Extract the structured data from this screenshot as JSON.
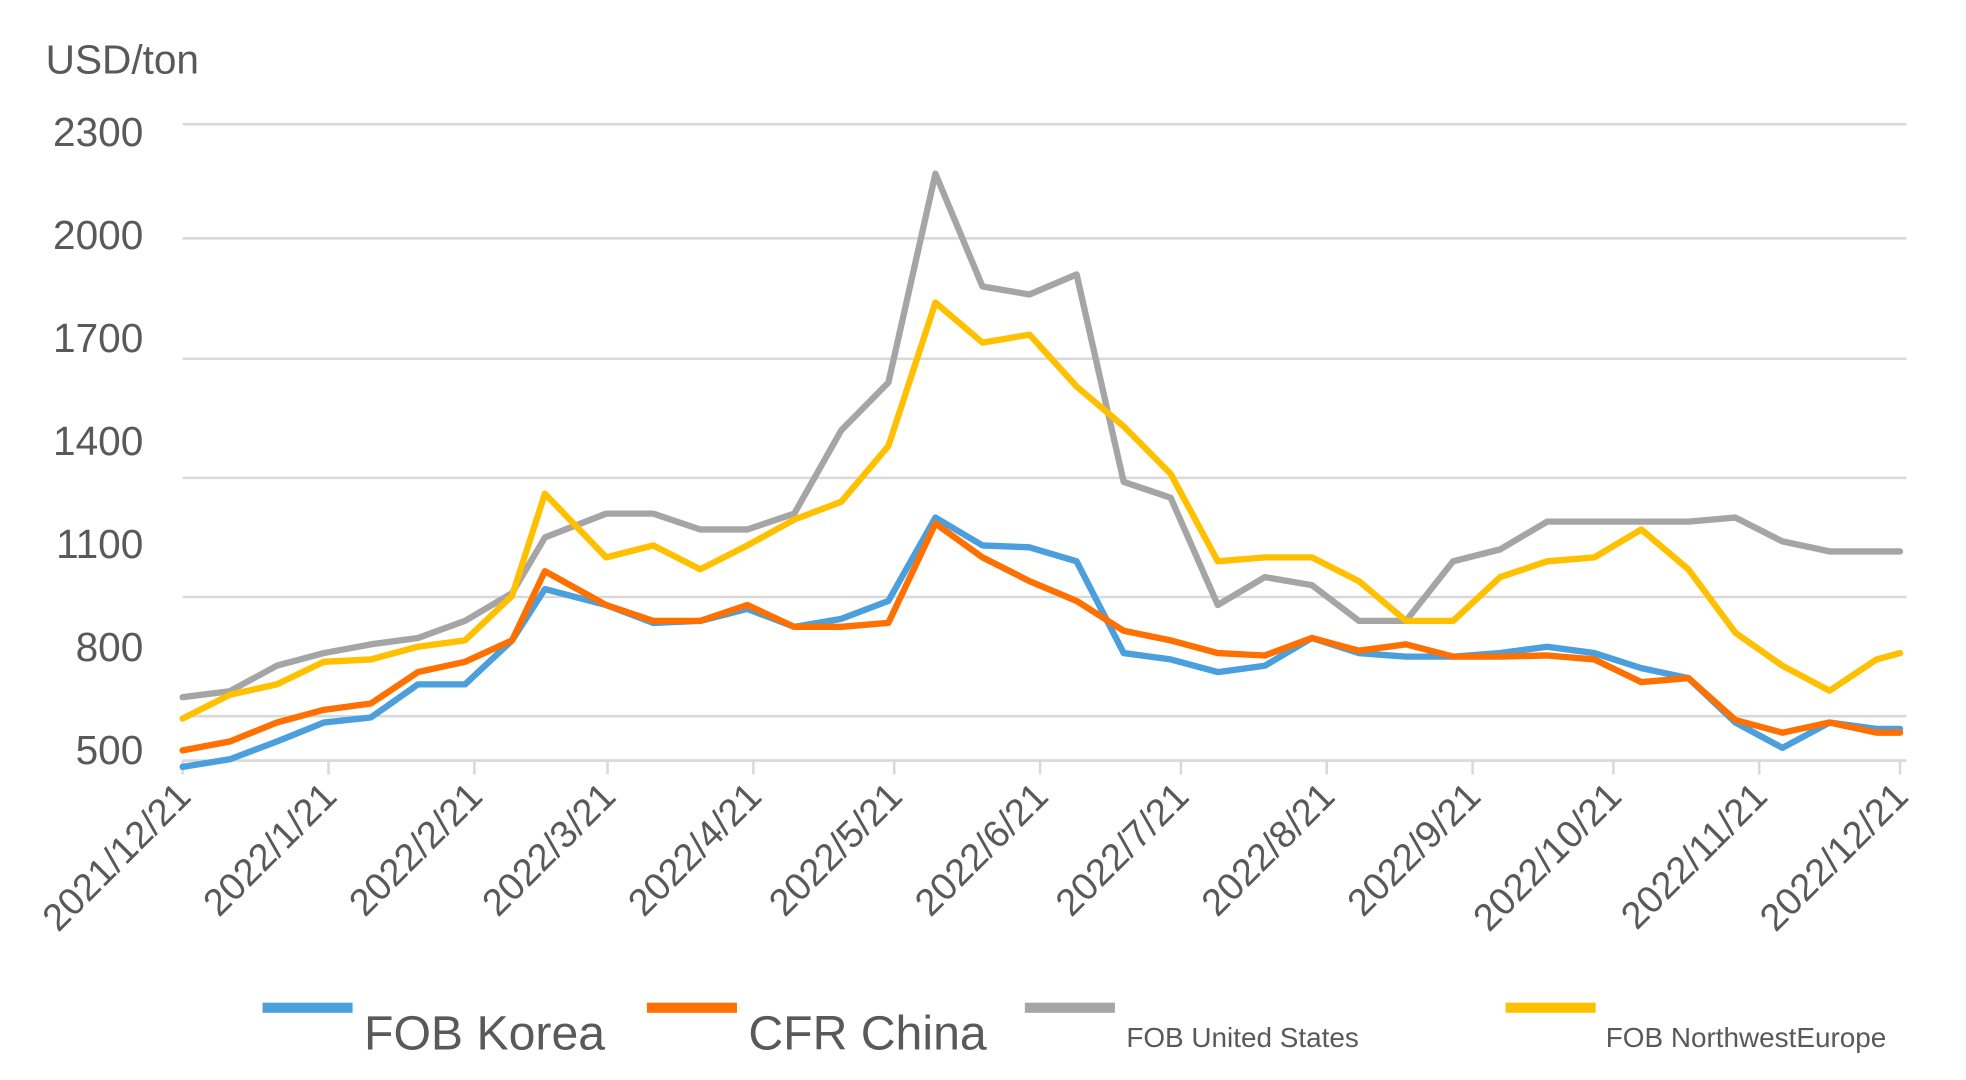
{
  "chart_data": {
    "type": "line",
    "title": "",
    "ylabel": "USD/ton",
    "xlabel": "",
    "y_ticks": [
      2300,
      2000,
      1700,
      1400,
      1100,
      800,
      500
    ],
    "x_ticks": [
      "2021/12/21",
      "2022/1/21",
      "2022/2/21",
      "2022/3/21",
      "2022/4/21",
      "2022/5/21",
      "2022/6/21",
      "2022/7/21",
      "2022/8/21",
      "2022/9/21",
      "2022/10/21",
      "2022/11/21",
      "2022/12/21"
    ],
    "x_range": [
      "2021-12-21",
      "2022-12-21"
    ],
    "grid": "horizontal",
    "legend_position": "bottom",
    "x": [
      "2021-12-21",
      "2021-12-31",
      "2022-01-10",
      "2022-01-20",
      "2022-01-30",
      "2022-02-09",
      "2022-02-19",
      "2022-03-01",
      "2022-03-08",
      "2022-03-21",
      "2022-03-31",
      "2022-04-10",
      "2022-04-20",
      "2022-04-30",
      "2022-05-10",
      "2022-05-20",
      "2022-05-30",
      "2022-06-09",
      "2022-06-19",
      "2022-06-29",
      "2022-07-09",
      "2022-07-19",
      "2022-07-29",
      "2022-08-08",
      "2022-08-18",
      "2022-08-28",
      "2022-09-07",
      "2022-09-17",
      "2022-09-27",
      "2022-10-07",
      "2022-10-17",
      "2022-10-27",
      "2022-11-06",
      "2022-11-16",
      "2022-11-26",
      "2022-12-06",
      "2022-12-16",
      "2022-12-21"
    ],
    "series": [
      {
        "name": "FOB Korea",
        "color": "#4a9fdc",
        "values": [
          457,
          509,
          629,
          757,
          791,
          880,
          880,
          991,
          1120,
          1080,
          1035,
          1040,
          1070,
          1025,
          1045,
          1090,
          1300,
          1230,
          1225,
          1190,
          959,
          943,
          911,
          927,
          997,
          959,
          950,
          950,
          959,
          975,
          959,
          921,
          896,
          757,
          586,
          757,
          714,
          714
        ]
      },
      {
        "name": "CFR China",
        "color": "#ff7000",
        "values": [
          569,
          629,
          757,
          816,
          832,
          911,
          937,
          991,
          1165,
          1080,
          1040,
          1040,
          1080,
          1025,
          1025,
          1035,
          1285,
          1200,
          1140,
          1090,
          1015,
          991,
          959,
          953,
          997,
          965,
          981,
          950,
          950,
          953,
          943,
          886,
          896,
          774,
          689,
          757,
          689,
          689
        ]
      },
      {
        "name": "FOB United States",
        "color": "#a5a5a5",
        "values": [
          848,
          863,
          927,
          959,
          981,
          997,
          1040,
          1110,
          1250,
          1310,
          1310,
          1270,
          1270,
          1310,
          1520,
          1640,
          2170,
          1880,
          1860,
          1910,
          1390,
          1350,
          1080,
          1150,
          1130,
          1040,
          1040,
          1190,
          1220,
          1290,
          1290,
          1290,
          1290,
          1300,
          1240,
          1215,
          1215,
          1215
        ]
      },
      {
        "name": "FOB NorthwestEurope",
        "color": "#ffc000",
        "values": [
          784,
          854,
          880,
          937,
          943,
          975,
          991,
          1103,
          1360,
          1200,
          1230,
          1170,
          1230,
          1295,
          1340,
          1480,
          1840,
          1740,
          1760,
          1630,
          1530,
          1410,
          1190,
          1200,
          1200,
          1140,
          1040,
          1040,
          1150,
          1190,
          1200,
          1270,
          1170,
          1010,
          927,
          864,
          943,
          959
        ]
      }
    ]
  }
}
